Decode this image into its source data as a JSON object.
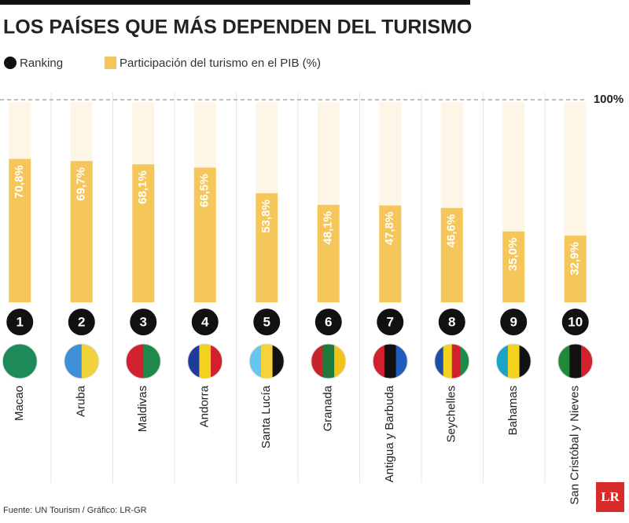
{
  "chart_data": {
    "type": "bar",
    "title": "LOS PAÍSES QUE MÁS DEPENDEN DEL TURISMO",
    "legend": {
      "ranking": "Ranking",
      "share": "Participación del turismo en el PIB (%)"
    },
    "categories": [
      "Macao",
      "Aruba",
      "Maldivas",
      "Andorra",
      "Santa Lucía",
      "Granada",
      "Antigua y Barbuda",
      "Seychelles",
      "Bahamas",
      "San Cristóbal y Nieves"
    ],
    "ranks": [
      1,
      2,
      3,
      4,
      5,
      6,
      7,
      8,
      9,
      10
    ],
    "values": [
      70.8,
      69.7,
      68.1,
      66.5,
      53.8,
      48.1,
      47.8,
      46.6,
      35.0,
      32.9
    ],
    "value_labels": [
      "70,8%",
      "69,7%",
      "68,1%",
      "66,5%",
      "53,8%",
      "48,1%",
      "47,8%",
      "46,6%",
      "35,0%",
      "32,9%"
    ],
    "color": "#f5c65a",
    "ylim": [
      0,
      100
    ],
    "reference_line": {
      "value": 100,
      "label": "100%"
    },
    "source": "Fuente: UN Tourism / Gráfico: LR-GR",
    "logo": "LR"
  }
}
